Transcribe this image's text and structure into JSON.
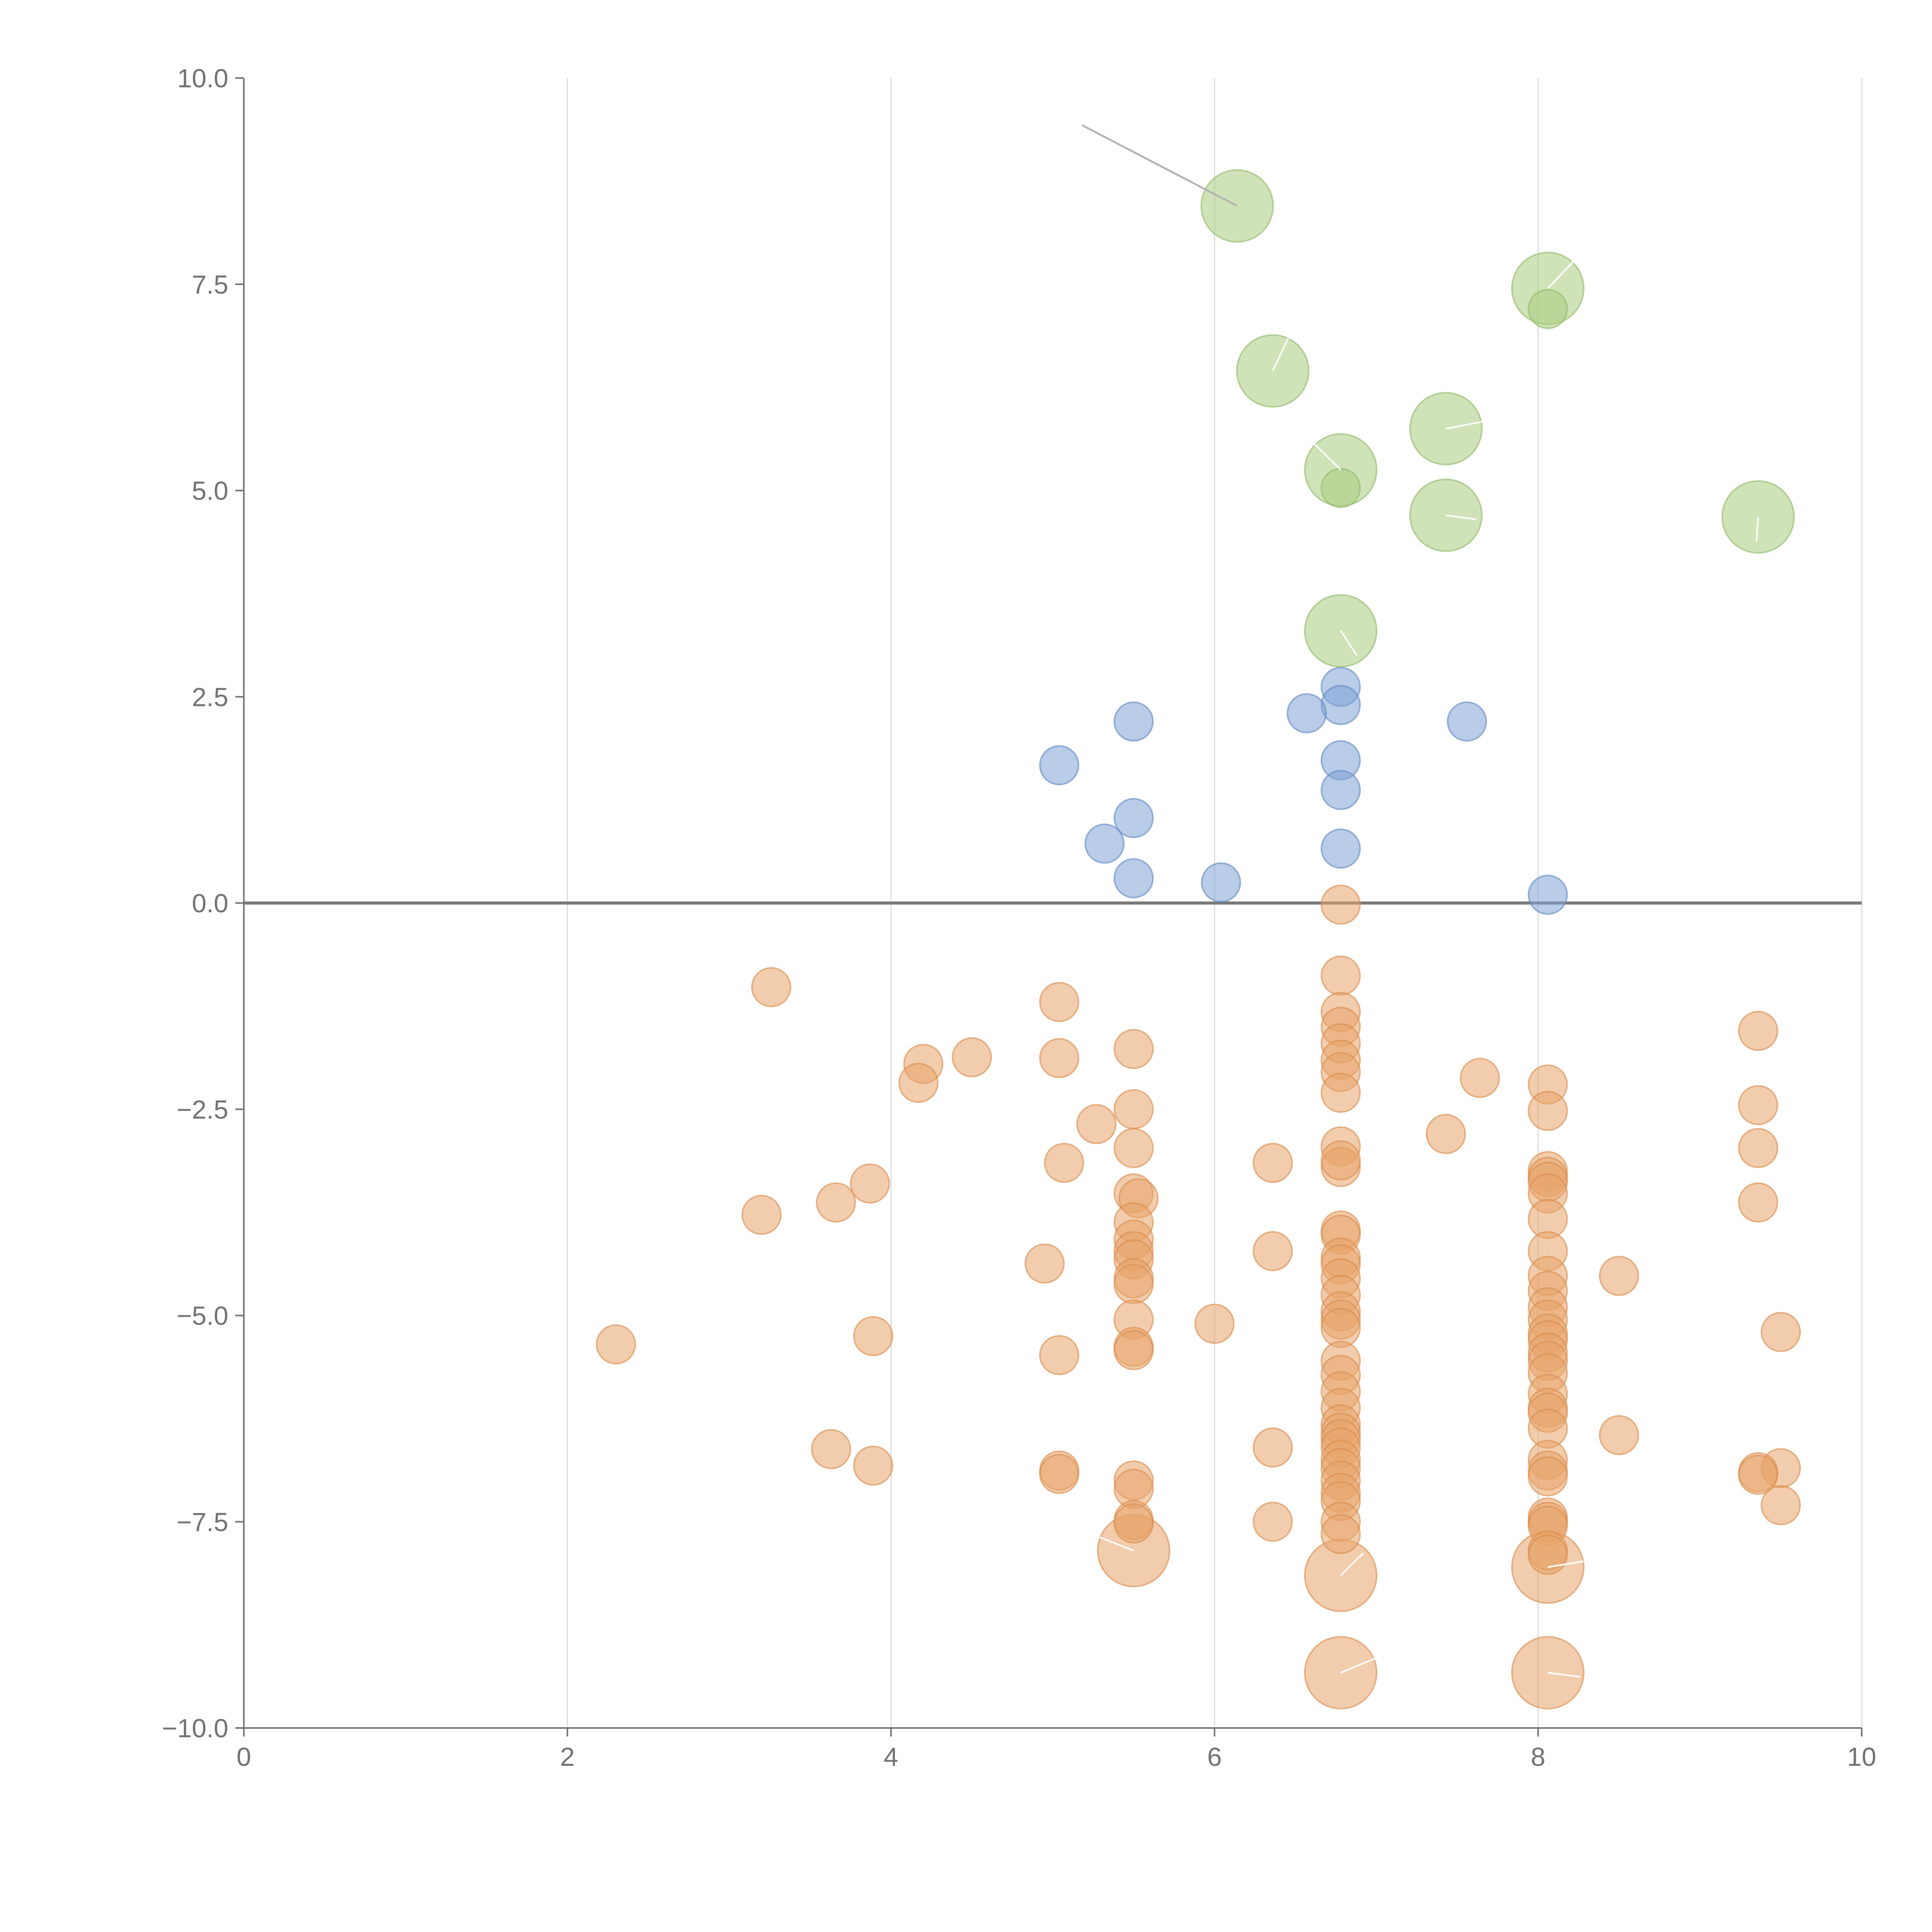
{
  "chart_data": {
    "type": "scatter",
    "title": "",
    "xlabel": "",
    "ylabel": "",
    "xlim": [
      0,
      10
    ],
    "ylim": [
      -10,
      10
    ],
    "grid": "vertical",
    "zero_line": 0,
    "x_ticks": [
      "0",
      "2",
      "4",
      "6",
      "8",
      "10"
    ],
    "y_ticks": [
      "10.0",
      "7.5",
      "5.0",
      "2.5",
      "0.0",
      "−2.5",
      "−5.0",
      "−7.5",
      "−10.0"
    ],
    "colors": {
      "green": "#a9cc7e",
      "blue": "#7fa3d6",
      "orange": "#e8a46a",
      "green_stroke": "#8fb865",
      "blue_stroke": "#5f87c2",
      "orange_stroke": "#d98a4a"
    },
    "series": [
      {
        "name": "green-large",
        "color": "green",
        "size": "large",
        "points": [
          [
            6.14,
            8.45
          ],
          [
            8.06,
            7.45
          ],
          [
            6.36,
            6.45
          ],
          [
            7.43,
            5.75
          ],
          [
            6.78,
            5.25
          ],
          [
            7.43,
            4.7
          ],
          [
            9.36,
            4.68
          ],
          [
            6.78,
            3.3
          ]
        ]
      },
      {
        "name": "green-small",
        "color": "green",
        "size": "small",
        "points": [
          [
            8.06,
            7.2
          ],
          [
            6.78,
            5.03
          ]
        ]
      },
      {
        "name": "blue",
        "color": "blue",
        "size": "small",
        "points": [
          [
            6.78,
            2.62
          ],
          [
            6.78,
            2.4
          ],
          [
            6.57,
            2.3
          ],
          [
            5.5,
            2.2
          ],
          [
            7.56,
            2.2
          ],
          [
            6.78,
            1.73
          ],
          [
            5.04,
            1.67
          ],
          [
            6.78,
            1.37
          ],
          [
            5.5,
            1.03
          ],
          [
            5.32,
            0.72
          ],
          [
            6.78,
            0.66
          ],
          [
            5.5,
            0.3
          ],
          [
            6.04,
            0.25
          ],
          [
            8.06,
            0.1
          ]
        ]
      },
      {
        "name": "orange-large",
        "color": "orange",
        "size": "large",
        "points": [
          [
            5.5,
            -7.85
          ],
          [
            6.78,
            -8.15
          ],
          [
            8.06,
            -8.05
          ],
          [
            6.78,
            -9.33
          ],
          [
            8.06,
            -9.33
          ]
        ]
      },
      {
        "name": "orange",
        "color": "orange",
        "size": "small",
        "points": [
          [
            6.78,
            -0.02
          ],
          [
            6.78,
            -0.88
          ],
          [
            3.26,
            -1.02
          ],
          [
            5.04,
            -1.2
          ],
          [
            9.36,
            -1.55
          ],
          [
            6.78,
            -1.32
          ],
          [
            6.78,
            -1.5
          ],
          [
            5.5,
            -1.77
          ],
          [
            6.78,
            -1.7
          ],
          [
            4.5,
            -1.87
          ],
          [
            5.04,
            -1.88
          ],
          [
            6.78,
            -1.9
          ],
          [
            4.2,
            -1.95
          ],
          [
            6.78,
            -2.05
          ],
          [
            7.64,
            -2.12
          ],
          [
            4.17,
            -2.18
          ],
          [
            8.06,
            -2.2
          ],
          [
            6.78,
            -2.3
          ],
          [
            9.36,
            -2.45
          ],
          [
            5.5,
            -2.5
          ],
          [
            8.06,
            -2.52
          ],
          [
            5.27,
            -2.68
          ],
          [
            7.43,
            -2.8
          ],
          [
            6.78,
            -2.95
          ],
          [
            5.5,
            -2.97
          ],
          [
            9.36,
            -2.97
          ],
          [
            5.07,
            -3.15
          ],
          [
            6.36,
            -3.15
          ],
          [
            6.78,
            -3.2
          ],
          [
            6.78,
            -3.12
          ],
          [
            8.06,
            -3.25
          ],
          [
            8.06,
            -3.32
          ],
          [
            8.06,
            -3.38
          ],
          [
            3.87,
            -3.4
          ],
          [
            5.5,
            -3.52
          ],
          [
            8.06,
            -3.52
          ],
          [
            5.53,
            -3.58
          ],
          [
            3.66,
            -3.63
          ],
          [
            9.36,
            -3.63
          ],
          [
            3.2,
            -3.78
          ],
          [
            8.06,
            -3.83
          ],
          [
            5.5,
            -3.87
          ],
          [
            6.78,
            -3.97
          ],
          [
            6.78,
            -4.02
          ],
          [
            5.5,
            -4.08
          ],
          [
            8.06,
            -4.22
          ],
          [
            5.5,
            -4.22
          ],
          [
            6.36,
            -4.22
          ],
          [
            5.5,
            -4.32
          ],
          [
            6.78,
            -4.3
          ],
          [
            6.78,
            -4.38
          ],
          [
            4.95,
            -4.37
          ],
          [
            8.06,
            -4.52
          ],
          [
            8.5,
            -4.52
          ],
          [
            5.5,
            -4.55
          ],
          [
            6.78,
            -4.55
          ],
          [
            5.5,
            -4.62
          ],
          [
            8.06,
            -4.7
          ],
          [
            6.78,
            -4.75
          ],
          [
            8.06,
            -4.9
          ],
          [
            6.78,
            -4.95
          ],
          [
            5.5,
            -5.05
          ],
          [
            6.78,
            -5.05
          ],
          [
            8.06,
            -5.05
          ],
          [
            6.0,
            -5.1
          ],
          [
            6.78,
            -5.15
          ],
          [
            9.5,
            -5.2
          ],
          [
            8.06,
            -5.22
          ],
          [
            3.89,
            -5.25
          ],
          [
            8.06,
            -5.3
          ],
          [
            2.3,
            -5.35
          ],
          [
            5.5,
            -5.38
          ],
          [
            5.5,
            -5.42
          ],
          [
            8.06,
            -5.45
          ],
          [
            5.04,
            -5.48
          ],
          [
            8.06,
            -5.55
          ],
          [
            6.78,
            -5.55
          ],
          [
            8.06,
            -5.7
          ],
          [
            6.78,
            -5.72
          ],
          [
            8.06,
            -5.95
          ],
          [
            6.78,
            -5.92
          ],
          [
            6.78,
            -6.12
          ],
          [
            8.06,
            -6.12
          ],
          [
            8.06,
            -6.18
          ],
          [
            6.78,
            -6.32
          ],
          [
            8.06,
            -6.37
          ],
          [
            6.78,
            -6.42
          ],
          [
            6.78,
            -6.5
          ],
          [
            8.5,
            -6.45
          ],
          [
            6.78,
            -6.6
          ],
          [
            3.63,
            -6.62
          ],
          [
            6.36,
            -6.6
          ],
          [
            6.78,
            -6.75
          ],
          [
            8.06,
            -6.75
          ],
          [
            3.89,
            -6.82
          ],
          [
            6.78,
            -6.85
          ],
          [
            9.5,
            -6.85
          ],
          [
            8.06,
            -6.88
          ],
          [
            5.04,
            -6.88
          ],
          [
            5.04,
            -6.92
          ],
          [
            9.36,
            -6.9
          ],
          [
            9.36,
            -6.93
          ],
          [
            8.06,
            -6.95
          ],
          [
            6.78,
            -7.0
          ],
          [
            5.5,
            -7.0
          ],
          [
            5.5,
            -7.1
          ],
          [
            6.78,
            -7.15
          ],
          [
            6.78,
            -7.25
          ],
          [
            9.5,
            -7.3
          ],
          [
            8.06,
            -7.45
          ],
          [
            8.06,
            -7.5
          ],
          [
            5.5,
            -7.48
          ],
          [
            5.5,
            -7.52
          ],
          [
            6.36,
            -7.5
          ],
          [
            6.78,
            -7.5
          ],
          [
            8.06,
            -7.55
          ],
          [
            6.78,
            -7.65
          ],
          [
            8.06,
            -7.85
          ],
          [
            8.06,
            -7.9
          ]
        ]
      }
    ],
    "annotations": [
      {
        "from": [
          6.14,
          8.45
        ],
        "to": [
          5.18,
          9.43
        ],
        "style": "dark"
      },
      {
        "from": [
          8.06,
          7.45
        ],
        "to": [
          8.22,
          7.78
        ],
        "style": "light"
      },
      {
        "from": [
          6.36,
          6.45
        ],
        "to": [
          6.48,
          6.95
        ],
        "style": "light"
      },
      {
        "from": [
          7.43,
          5.75
        ],
        "to": [
          7.75,
          5.87
        ],
        "style": "light"
      },
      {
        "from": [
          6.78,
          5.25
        ],
        "to": [
          6.6,
          5.6
        ],
        "style": "light"
      },
      {
        "from": [
          7.43,
          4.7
        ],
        "to": [
          7.62,
          4.65
        ],
        "style": "light"
      },
      {
        "from": [
          9.36,
          4.68
        ],
        "to": [
          9.35,
          4.38
        ],
        "style": "light"
      },
      {
        "from": [
          6.78,
          3.3
        ],
        "to": [
          6.88,
          3.0
        ],
        "style": "light"
      },
      {
        "from": [
          5.5,
          -7.85
        ],
        "to": [
          5.28,
          -7.68
        ],
        "style": "light"
      },
      {
        "from": [
          6.78,
          -8.15
        ],
        "to": [
          6.92,
          -7.88
        ],
        "style": "light"
      },
      {
        "from": [
          8.06,
          -8.05
        ],
        "to": [
          8.28,
          -7.98
        ],
        "style": "light"
      },
      {
        "from": [
          6.78,
          -9.33
        ],
        "to": [
          7.0,
          -9.15
        ],
        "style": "light"
      },
      {
        "from": [
          8.06,
          -9.33
        ],
        "to": [
          8.26,
          -9.38
        ],
        "style": "light"
      }
    ]
  }
}
